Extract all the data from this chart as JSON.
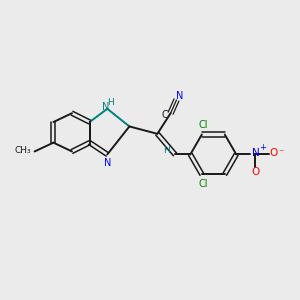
{
  "background_color": "#ebebeb",
  "bond_color": "#1a1a1a",
  "n_color": "#0000ff",
  "nh_color": "#008080",
  "cl_color": "#008000",
  "o_color": "#ff0000",
  "figsize": [
    3.0,
    3.0
  ],
  "dpi": 100,
  "xlim": [
    0,
    10
  ],
  "ylim": [
    0,
    10
  ]
}
